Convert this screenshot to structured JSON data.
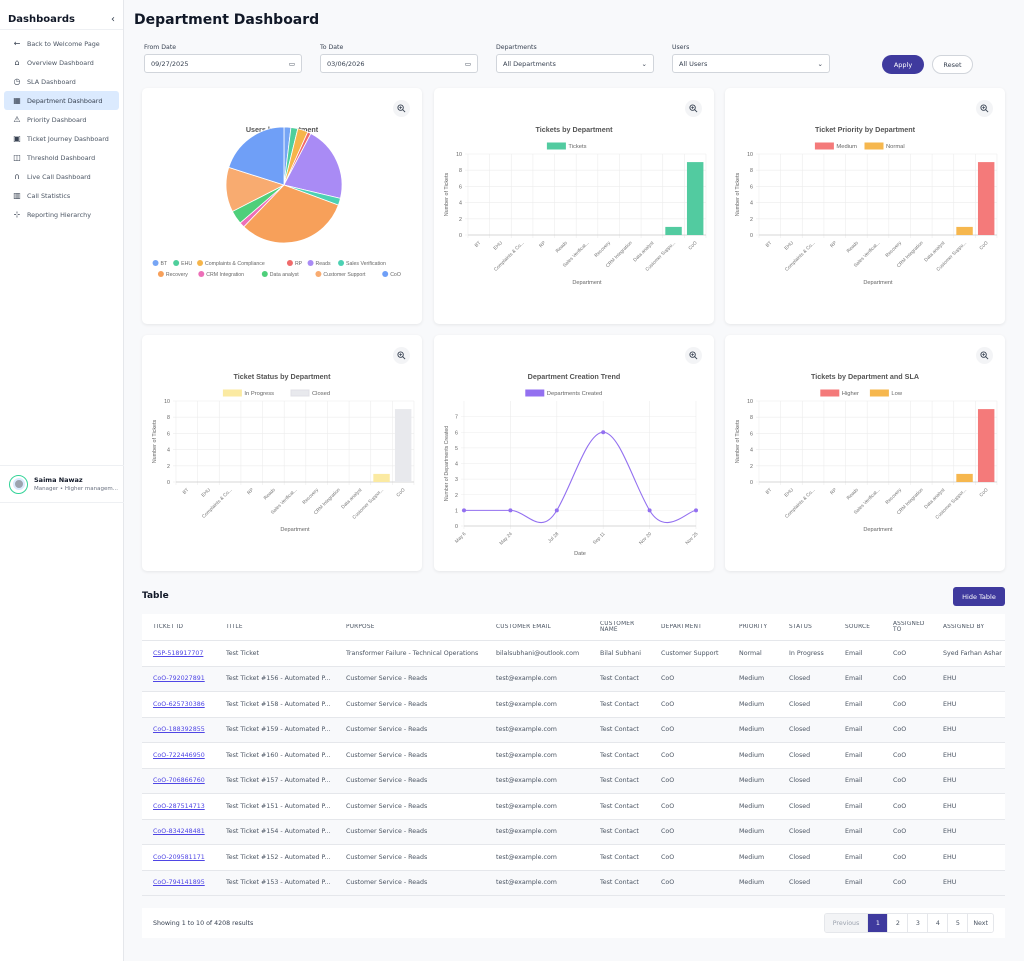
{
  "sidebar": {
    "title": "Dashboards",
    "collapse_icon": "chevron-left-icon",
    "items": [
      {
        "label": "Back to Welcome Page",
        "icon": "arrow-left-icon",
        "glyph": "←",
        "active": false
      },
      {
        "label": "Overview Dashboard",
        "icon": "home-icon",
        "glyph": "⌂",
        "active": false
      },
      {
        "label": "SLA Dashboard",
        "icon": "clock-icon",
        "glyph": "◷",
        "active": false
      },
      {
        "label": "Department Dashboard",
        "icon": "building-icon",
        "glyph": "▦",
        "active": true
      },
      {
        "label": "Priority Dashboard",
        "icon": "warning-icon",
        "glyph": "⚠",
        "active": false
      },
      {
        "label": "Ticket Journey Dashboard",
        "icon": "qr-icon",
        "glyph": "▣",
        "active": false
      },
      {
        "label": "Threshold Dashboard",
        "icon": "map-icon",
        "glyph": "◫",
        "active": false
      },
      {
        "label": "Live Call Dashboard",
        "icon": "headphones-icon",
        "glyph": "∩",
        "active": false
      },
      {
        "label": "Call Statistics",
        "icon": "bar-chart-icon",
        "glyph": "▥",
        "active": false
      },
      {
        "label": "Reporting Hierarchy",
        "icon": "hierarchy-icon",
        "glyph": "⊹",
        "active": false
      }
    ],
    "user": {
      "name": "Saima Nawaz",
      "role": "Manager • Higher managem..."
    }
  },
  "header": {
    "title": "Department Dashboard"
  },
  "filters": {
    "from_date": {
      "label": "From Date",
      "value": "09/27/2025"
    },
    "to_date": {
      "label": "To Date",
      "value": "03/06/2026"
    },
    "departments": {
      "label": "Departments",
      "value": "All Departments"
    },
    "users": {
      "label": "Users",
      "value": "All Users"
    },
    "apply_label": "Apply",
    "reset_label": "Reset"
  },
  "colors": {
    "accent": "#3f3a9e",
    "link": "#4f46e5"
  },
  "chart_data": [
    {
      "type": "pie",
      "title": "Users by Department",
      "categories": [
        "BT",
        "EHU",
        "Complaints & Compliance",
        "RP",
        "Reads",
        "Sales Verification",
        "Recovery",
        "CRM Integration",
        "Data analyst",
        "Customer Support",
        "CoO"
      ],
      "values": [
        2,
        2,
        3,
        1,
        22,
        2,
        33,
        1.5,
        4,
        13,
        21
      ],
      "colors": [
        "#76a5f5",
        "#4fcf9c",
        "#f6b54a",
        "#f06b6b",
        "#a98bf5",
        "#4cd1b3",
        "#f7a05a",
        "#ec6fb8",
        "#4ecf7a",
        "#f8ab70",
        "#6f9ff7"
      ],
      "legend": "bottom"
    },
    {
      "type": "bar",
      "title": "Tickets by Department",
      "categories": [
        "BT",
        "EHU",
        "Complaints & Co...",
        "RP",
        "Reads",
        "Sales Verificat...",
        "Recovery",
        "CRM Integration",
        "Data analyst",
        "Customer Suppo...",
        "CoO"
      ],
      "series": [
        {
          "name": "Tickets",
          "color": "#52cba0",
          "values": [
            0,
            0,
            0,
            0,
            0,
            0,
            0,
            0,
            0,
            1,
            9
          ]
        }
      ],
      "stacked": false,
      "xlabel": "Department",
      "ylabel": "Number of Tickets",
      "ylim": [
        0,
        10
      ],
      "yticks": [
        0,
        2,
        4,
        6,
        8,
        10
      ],
      "legend": "top",
      "grid": true
    },
    {
      "type": "bar",
      "title": "Ticket Priority by Department",
      "categories": [
        "BT",
        "EHU",
        "Complaints & Co...",
        "RP",
        "Reads",
        "Sales Verificat...",
        "Recovery",
        "CRM Integration",
        "Data analyst",
        "Customer Suppo...",
        "CoO"
      ],
      "series": [
        {
          "name": "Medium",
          "color": "#f47a7a",
          "values": [
            0,
            0,
            0,
            0,
            0,
            0,
            0,
            0,
            0,
            0,
            9
          ]
        },
        {
          "name": "Normal",
          "color": "#f6b74e",
          "values": [
            0,
            0,
            0,
            0,
            0,
            0,
            0,
            0,
            0,
            1,
            0
          ]
        }
      ],
      "stacked": true,
      "xlabel": "Department",
      "ylabel": "Number of Tickets",
      "ylim": [
        0,
        10
      ],
      "yticks": [
        0,
        2,
        4,
        6,
        8,
        10
      ],
      "legend": "top",
      "grid": true
    },
    {
      "type": "bar",
      "title": "Ticket Status by Department",
      "categories": [
        "BT",
        "EHU",
        "Complaints & Co...",
        "RP",
        "Reads",
        "Sales Verificat...",
        "Recovery",
        "CRM Integration",
        "Data analyst",
        "Customer Suppor...",
        "CoO"
      ],
      "series": [
        {
          "name": "In Progress",
          "color": "#fbeaa2",
          "values": [
            0,
            0,
            0,
            0,
            0,
            0,
            0,
            0,
            0,
            1,
            0
          ]
        },
        {
          "name": "Closed",
          "color": "#e8e9ed",
          "values": [
            0,
            0,
            0,
            0,
            0,
            0,
            0,
            0,
            0,
            0,
            9
          ]
        }
      ],
      "stacked": true,
      "xlabel": "Department",
      "ylabel": "Number of Tickets",
      "ylim": [
        0,
        10
      ],
      "yticks": [
        0,
        2,
        4,
        6,
        8,
        10
      ],
      "legend": "top",
      "grid": true
    },
    {
      "type": "line",
      "title": "Department Creation Trend",
      "x": [
        "May 6",
        "May 24",
        "Jul 28",
        "Sep 11",
        "Nov 20",
        "Nov 25"
      ],
      "series": [
        {
          "name": "Departments Created",
          "color": "#9370f0",
          "values": [
            1,
            1,
            1,
            6,
            1,
            1
          ]
        }
      ],
      "xlabel": "Date",
      "ylabel": "Number of Departments Created",
      "ylim": [
        0,
        8
      ],
      "yticks": [
        0,
        1,
        2,
        3,
        4,
        5,
        6,
        7
      ],
      "legend": "top",
      "grid": true
    },
    {
      "type": "bar",
      "title": "Tickets by Department and SLA",
      "categories": [
        "BT",
        "EHU",
        "Complaints & Co...",
        "RP",
        "Reads",
        "Sales Verificat...",
        "Recovery",
        "CRM Integration",
        "Data analyst",
        "Customer Suppor...",
        "CoO"
      ],
      "series": [
        {
          "name": "Higher",
          "color": "#f47a7a",
          "values": [
            0,
            0,
            0,
            0,
            0,
            0,
            0,
            0,
            0,
            0,
            9
          ]
        },
        {
          "name": "Low",
          "color": "#f6b74e",
          "values": [
            0,
            0,
            0,
            0,
            0,
            0,
            0,
            0,
            0,
            1,
            0
          ]
        }
      ],
      "stacked": true,
      "xlabel": "Department",
      "ylabel": "Number of Tickets",
      "ylim": [
        0,
        10
      ],
      "yticks": [
        0,
        2,
        4,
        6,
        8,
        10
      ],
      "legend": "top",
      "grid": true
    }
  ],
  "table": {
    "title": "Table",
    "hide_label": "Hide Table",
    "columns": [
      "TICKET ID",
      "TITLE",
      "PURPOSE",
      "CUSTOMER EMAIL",
      "CUSTOMER NAME",
      "DEPARTMENT",
      "PRIORITY",
      "STATUS",
      "SOURCE",
      "ASSIGNED TO",
      "ASSIGNED BY"
    ],
    "rows": [
      [
        "CSP-518917707",
        "Test Ticket",
        "Transformer Failure - Technical Operations",
        "bilalsubhani@outlook.com",
        "Bilal Subhani",
        "Customer Support",
        "Normal",
        "In Progress",
        "Email",
        "CoO",
        "Syed Farhan Ashar"
      ],
      [
        "CoO-792027891",
        "Test Ticket #156 - Automated P...",
        "Customer Service - Reads",
        "test@example.com",
        "Test Contact",
        "CoO",
        "Medium",
        "Closed",
        "Email",
        "CoO",
        "EHU"
      ],
      [
        "CoO-625730386",
        "Test Ticket #158 - Automated P...",
        "Customer Service - Reads",
        "test@example.com",
        "Test Contact",
        "CoO",
        "Medium",
        "Closed",
        "Email",
        "CoO",
        "EHU"
      ],
      [
        "CoO-188392855",
        "Test Ticket #159 - Automated P...",
        "Customer Service - Reads",
        "test@example.com",
        "Test Contact",
        "CoO",
        "Medium",
        "Closed",
        "Email",
        "CoO",
        "EHU"
      ],
      [
        "CoO-722446950",
        "Test Ticket #160 - Automated P...",
        "Customer Service - Reads",
        "test@example.com",
        "Test Contact",
        "CoO",
        "Medium",
        "Closed",
        "Email",
        "CoO",
        "EHU"
      ],
      [
        "CoO-706866760",
        "Test Ticket #157 - Automated P...",
        "Customer Service - Reads",
        "test@example.com",
        "Test Contact",
        "CoO",
        "Medium",
        "Closed",
        "Email",
        "CoO",
        "EHU"
      ],
      [
        "CoO-287514713",
        "Test Ticket #151 - Automated P...",
        "Customer Service - Reads",
        "test@example.com",
        "Test Contact",
        "CoO",
        "Medium",
        "Closed",
        "Email",
        "CoO",
        "EHU"
      ],
      [
        "CoO-834248481",
        "Test Ticket #154 - Automated P...",
        "Customer Service - Reads",
        "test@example.com",
        "Test Contact",
        "CoO",
        "Medium",
        "Closed",
        "Email",
        "CoO",
        "EHU"
      ],
      [
        "CoO-209581171",
        "Test Ticket #152 - Automated P...",
        "Customer Service - Reads",
        "test@example.com",
        "Test Contact",
        "CoO",
        "Medium",
        "Closed",
        "Email",
        "CoO",
        "EHU"
      ],
      [
        "CoO-794141895",
        "Test Ticket #153 - Automated P...",
        "Customer Service - Reads",
        "test@example.com",
        "Test Contact",
        "CoO",
        "Medium",
        "Closed",
        "Email",
        "CoO",
        "EHU"
      ]
    ],
    "pagination": {
      "summary": "Showing 1 to 10 of 4208 results",
      "previous_label": "Previous",
      "next_label": "Next",
      "pages": [
        "1",
        "2",
        "3",
        "4",
        "5"
      ],
      "current": "1"
    }
  }
}
